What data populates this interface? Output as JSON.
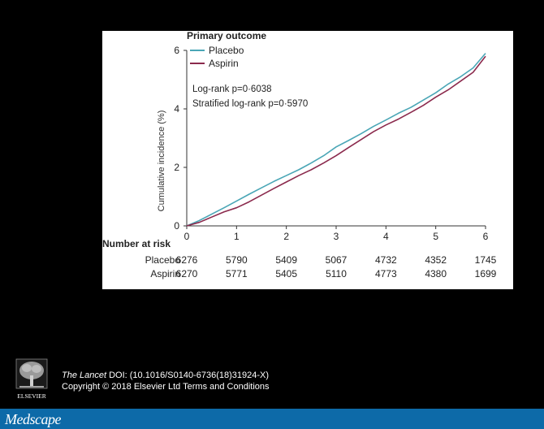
{
  "chart_data": {
    "type": "line",
    "title": "Primary outcome",
    "xlabel": "",
    "ylabel": "Cumulative incidence (%)",
    "xlim": [
      0,
      6
    ],
    "ylim": [
      0,
      6
    ],
    "x_ticks": [
      "0",
      "1",
      "2",
      "3",
      "4",
      "5",
      "6"
    ],
    "y_ticks": [
      "0",
      "2",
      "4",
      "6"
    ],
    "legend_position": "top-left",
    "grid": false,
    "series": [
      {
        "name": "Placebo",
        "color": "#4aa6b6",
        "x": [
          0,
          0.25,
          0.5,
          0.75,
          1,
          1.25,
          1.5,
          1.75,
          2,
          2.25,
          2.5,
          2.75,
          3,
          3.25,
          3.5,
          3.75,
          4,
          4.25,
          4.5,
          4.75,
          5,
          5.25,
          5.5,
          5.75,
          6
        ],
        "y": [
          0,
          0.18,
          0.4,
          0.62,
          0.85,
          1.08,
          1.3,
          1.52,
          1.72,
          1.92,
          2.15,
          2.4,
          2.7,
          2.92,
          3.15,
          3.4,
          3.62,
          3.85,
          4.05,
          4.3,
          4.55,
          4.85,
          5.1,
          5.4,
          5.9
        ]
      },
      {
        "name": "Aspirin",
        "color": "#8b2a4d",
        "x": [
          0,
          0.25,
          0.5,
          0.75,
          1,
          1.25,
          1.5,
          1.75,
          2,
          2.25,
          2.5,
          2.75,
          3,
          3.25,
          3.5,
          3.75,
          4,
          4.25,
          4.5,
          4.75,
          5,
          5.25,
          5.5,
          5.75,
          6
        ],
        "y": [
          0,
          0.12,
          0.3,
          0.48,
          0.62,
          0.82,
          1.05,
          1.28,
          1.5,
          1.72,
          1.92,
          2.15,
          2.4,
          2.68,
          2.95,
          3.22,
          3.45,
          3.65,
          3.88,
          4.12,
          4.4,
          4.65,
          4.95,
          5.25,
          5.8
        ]
      }
    ],
    "annotations": [
      "Log-rank p=0·6038",
      "Stratified log-rank p=0·5970"
    ],
    "risk_table": {
      "title": "Number at risk",
      "rows": [
        {
          "label": "Placebo",
          "values": [
            "6276",
            "5790",
            "5409",
            "5067",
            "4732",
            "4352",
            "1745"
          ]
        },
        {
          "label": "Aspirin",
          "values": [
            "6270",
            "5771",
            "5405",
            "5110",
            "4773",
            "4380",
            "1699"
          ]
        }
      ]
    }
  },
  "footer": {
    "publisher": "ELSEVIER",
    "journal": "The Lancet",
    "doi_text": " DOI: (10.1016/S0140-6736(18)31924-X)",
    "copyright": "Copyright © 2018 Elsevier Ltd Terms and Conditions"
  },
  "brand": {
    "name": "Medscape",
    "bar_color": "#0d6aa8"
  }
}
